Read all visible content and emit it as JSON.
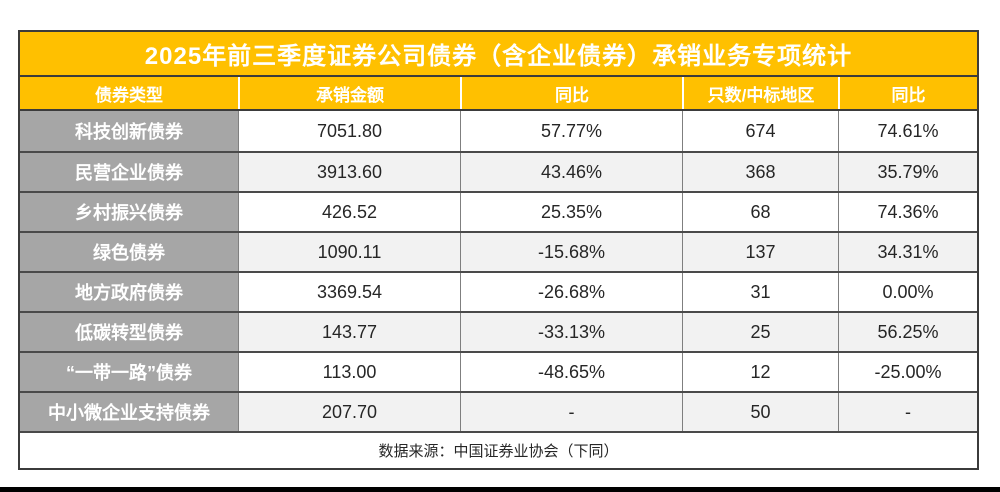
{
  "title": "2025年前三季度证券公司债券（含企业债券）承销业务专项统计",
  "colors": {
    "accent_gold": "#FFC000",
    "label_gray": "#A6A6A6",
    "alt_row_gray": "#F2F2F2",
    "border_dark": "#3b3b3b",
    "text_dark": "#262626",
    "text_white": "#ffffff"
  },
  "table": {
    "headers": [
      "债券类型",
      "承销金额",
      "同比",
      "只数/中标地区",
      "同比"
    ],
    "rows": [
      {
        "type": "科技创新债券",
        "amount": "7051.80",
        "yoy": "57.77%",
        "count": "674",
        "count_yoy": "74.61%"
      },
      {
        "type": "民营企业债券",
        "amount": "3913.60",
        "yoy": "43.46%",
        "count": "368",
        "count_yoy": "35.79%"
      },
      {
        "type": "乡村振兴债券",
        "amount": "426.52",
        "yoy": "25.35%",
        "count": "68",
        "count_yoy": "74.36%"
      },
      {
        "type": "绿色债券",
        "amount": "1090.11",
        "yoy": "-15.68%",
        "count": "137",
        "count_yoy": "34.31%"
      },
      {
        "type": "地方政府债券",
        "amount": "3369.54",
        "yoy": "-26.68%",
        "count": "31",
        "count_yoy": "0.00%"
      },
      {
        "type": "低碳转型债券",
        "amount": "143.77",
        "yoy": "-33.13%",
        "count": "25",
        "count_yoy": "56.25%"
      },
      {
        "type": "“一带一路”债券",
        "amount": "113.00",
        "yoy": "-48.65%",
        "count": "12",
        "count_yoy": "-25.00%"
      },
      {
        "type": "中小微企业支持债券",
        "amount": "207.70",
        "yoy": "-",
        "count": "50",
        "count_yoy": "-"
      }
    ]
  },
  "footer": {
    "source": "数据来源：中国证券业协会（下同）"
  }
}
